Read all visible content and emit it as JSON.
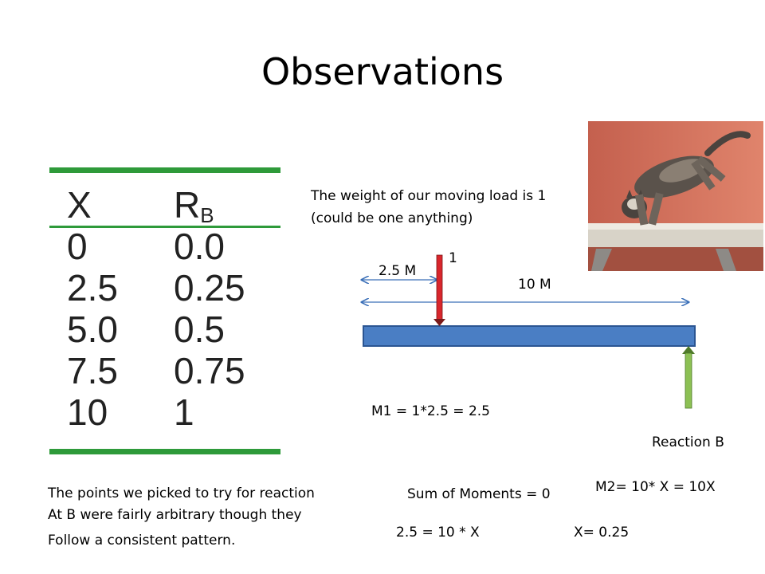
{
  "slide": {
    "title": "Observations"
  },
  "table": {
    "headers": [
      "X",
      "R",
      "B"
    ],
    "rows": [
      [
        "0",
        "0.0"
      ],
      [
        "2.5",
        "0.25"
      ],
      [
        "5.0",
        "0.5"
      ],
      [
        "7.5",
        "0.75"
      ],
      [
        "10",
        "1"
      ]
    ]
  },
  "diagram": {
    "load_text_line1": "The weight of our moving load is 1",
    "load_text_line2": "(could be one anything)",
    "load_label": "1",
    "dist_label_1": "2.5 M",
    "dist_label_2": "10 M",
    "moment1": "M1 = 1*2.5 = 2.5",
    "reaction_label": "Reaction B",
    "moment2": "M2= 10* X = 10X",
    "colors": {
      "beam": "#4a7ec4",
      "load_arrow": "#d9262c",
      "reaction_arrow": "#8cc054",
      "dimension": "#3a6fb8"
    }
  },
  "notes": {
    "line1": "The points we picked to try for reaction",
    "line2": "At B were fairly arbitrary though they",
    "line3": "Follow a consistent pattern."
  },
  "equations": {
    "sum": "Sum of Moments = 0",
    "eq": "2.5 = 10 * X",
    "result": "X= 0.25"
  },
  "image": {
    "icon": "cat-on-beam-photo"
  }
}
